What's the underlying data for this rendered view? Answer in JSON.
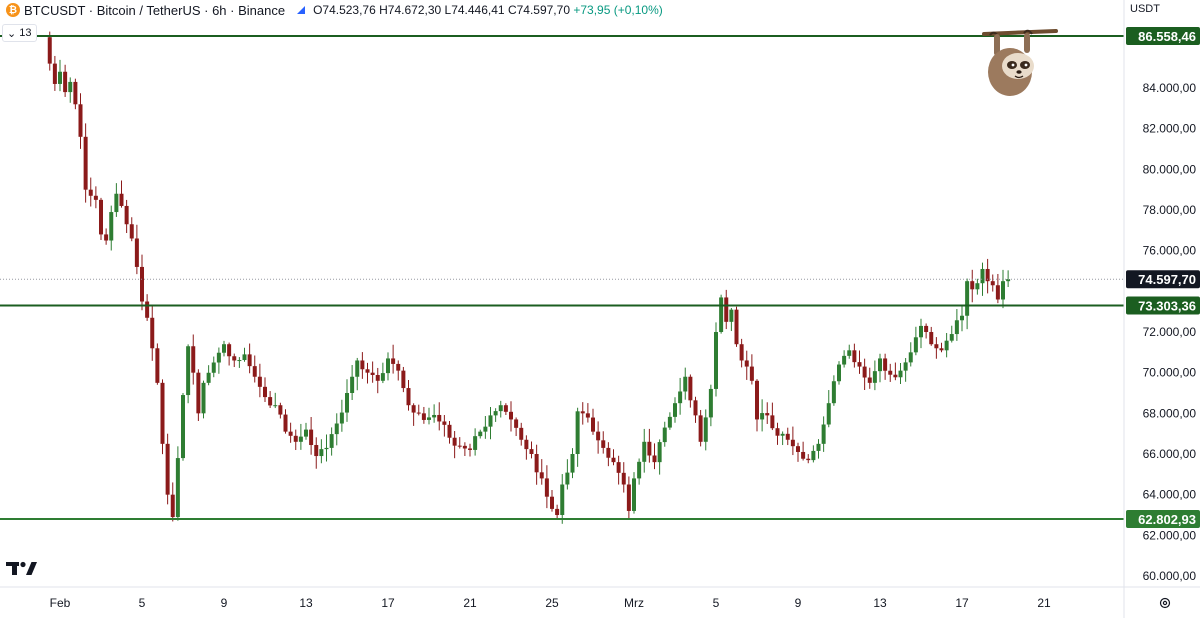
{
  "header": {
    "symbol_line": "BTCUSDT · Bitcoin / TetherUS · 6h · Binance",
    "coin_icon": "bitcoin-icon",
    "open": "O74.523,76",
    "high": "H74.672,30",
    "low": "L74.446,41",
    "close": "C74.597,70",
    "change": "+73,95 (+0,10%)",
    "indicator_count": "13"
  },
  "axis": {
    "unit": "USDT",
    "price_ticks": [
      "84.000,00",
      "82.000,00",
      "80.000,00",
      "78.000,00",
      "76.000,00",
      "72.000,00",
      "70.000,00",
      "68.000,00",
      "66.000,00",
      "64.000,00",
      "62.000,00",
      "60.000,00"
    ],
    "price_tick_values": [
      84000,
      82000,
      80000,
      78000,
      76000,
      72000,
      70000,
      68000,
      66000,
      64000,
      62000,
      60000
    ],
    "date_ticks": [
      "Feb",
      "5",
      "9",
      "13",
      "17",
      "21",
      "25",
      "Mrz",
      "5",
      "9",
      "13",
      "17",
      "21"
    ],
    "date_tick_days": [
      31,
      35,
      39,
      43,
      47,
      51,
      55,
      59,
      63,
      67,
      71,
      75,
      79
    ]
  },
  "levels": [
    {
      "label": "86.558,46",
      "value": 86558.46,
      "color": "#1b5e20"
    },
    {
      "label": "73.303,36",
      "value": 73303.36,
      "color": "#1b5e20"
    },
    {
      "label": "62.802,93",
      "value": 62802.93,
      "color": "#2e7d32"
    }
  ],
  "last_price": {
    "label": "74.597,70",
    "value": 74597.7,
    "color": "#131722"
  },
  "colors": {
    "up": "#2e7d32",
    "down": "#8b1a1a",
    "grid": "#f0f3fa"
  },
  "sloth_icon": "sloth-hanging-icon",
  "logo_icon": "tradingview-logo",
  "settings_icon": "gear-icon",
  "chart_data": {
    "type": "candlestick",
    "x_unit": "days since Jan 1 (6h bars)",
    "ylim": [
      60000,
      87000
    ],
    "series": [
      {
        "name": "BTCUSDT",
        "anchors": [
          [
            30.25,
            86500
          ],
          [
            30.5,
            85200
          ],
          [
            30.75,
            84200
          ],
          [
            31.0,
            84800
          ],
          [
            31.25,
            83800
          ],
          [
            31.5,
            84300
          ],
          [
            31.75,
            83200
          ],
          [
            32.0,
            81600
          ],
          [
            32.25,
            79000
          ],
          [
            32.5,
            78700
          ],
          [
            32.75,
            78500
          ],
          [
            33.0,
            76800
          ],
          [
            33.25,
            76500
          ],
          [
            33.5,
            77900
          ],
          [
            33.75,
            78800
          ],
          [
            34.0,
            78200
          ],
          [
            34.25,
            77300
          ],
          [
            34.5,
            76600
          ],
          [
            34.75,
            75200
          ],
          [
            35.0,
            73500
          ],
          [
            35.25,
            72700
          ],
          [
            35.5,
            71200
          ],
          [
            35.75,
            69500
          ],
          [
            36.0,
            66500
          ],
          [
            36.25,
            64000
          ],
          [
            36.5,
            62900
          ],
          [
            36.75,
            65800
          ],
          [
            37.0,
            68900
          ],
          [
            37.25,
            71300
          ],
          [
            37.5,
            70000
          ],
          [
            37.75,
            68000
          ],
          [
            38.0,
            69500
          ],
          [
            38.5,
            70500
          ],
          [
            39.0,
            71400
          ],
          [
            39.5,
            70600
          ],
          [
            40.0,
            70900
          ],
          [
            40.5,
            69800
          ],
          [
            41.0,
            68800
          ],
          [
            41.5,
            68400
          ],
          [
            42.0,
            67100
          ],
          [
            42.5,
            66600
          ],
          [
            43.0,
            67200
          ],
          [
            43.5,
            65900
          ],
          [
            44.0,
            66300
          ],
          [
            44.5,
            67500
          ],
          [
            45.0,
            69000
          ],
          [
            45.5,
            70600
          ],
          [
            46.0,
            70000
          ],
          [
            46.5,
            69600
          ],
          [
            47.0,
            70700
          ],
          [
            47.5,
            70100
          ],
          [
            48.0,
            68400
          ],
          [
            48.5,
            68000
          ],
          [
            49.0,
            67800
          ],
          [
            49.5,
            67600
          ],
          [
            50.0,
            66800
          ],
          [
            50.5,
            66400
          ],
          [
            51.0,
            66200
          ],
          [
            51.5,
            67100
          ],
          [
            52.0,
            67900
          ],
          [
            52.5,
            68400
          ],
          [
            53.0,
            67700
          ],
          [
            53.5,
            66700
          ],
          [
            54.0,
            66000
          ],
          [
            54.25,
            65100
          ],
          [
            54.5,
            64800
          ],
          [
            54.75,
            63900
          ],
          [
            55.0,
            63300
          ],
          [
            55.25,
            63000
          ],
          [
            55.5,
            64500
          ],
          [
            56.0,
            66000
          ],
          [
            56.25,
            68100
          ],
          [
            56.5,
            68000
          ],
          [
            57.0,
            67100
          ],
          [
            57.5,
            66300
          ],
          [
            58.0,
            65600
          ],
          [
            58.5,
            64500
          ],
          [
            58.75,
            63200
          ],
          [
            59.0,
            64800
          ],
          [
            59.5,
            66600
          ],
          [
            60.0,
            65600
          ],
          [
            60.5,
            67300
          ],
          [
            61.0,
            68500
          ],
          [
            61.5,
            69800
          ],
          [
            62.0,
            67900
          ],
          [
            62.25,
            66600
          ],
          [
            62.5,
            67800
          ],
          [
            62.75,
            69200
          ],
          [
            63.0,
            72000
          ],
          [
            63.25,
            73700
          ],
          [
            63.5,
            72500
          ],
          [
            63.75,
            73100
          ],
          [
            64.0,
            71400
          ],
          [
            64.25,
            70600
          ],
          [
            64.5,
            70300
          ],
          [
            64.75,
            69600
          ],
          [
            65.0,
            67700
          ],
          [
            65.5,
            67900
          ],
          [
            66.0,
            66900
          ],
          [
            66.5,
            66700
          ],
          [
            67.0,
            66100
          ],
          [
            67.5,
            65700
          ],
          [
            68.0,
            66500
          ],
          [
            68.5,
            68500
          ],
          [
            69.0,
            70400
          ],
          [
            69.5,
            71100
          ],
          [
            70.0,
            70300
          ],
          [
            70.5,
            69500
          ],
          [
            71.0,
            70700
          ],
          [
            71.5,
            69900
          ],
          [
            72.0,
            70100
          ],
          [
            72.5,
            71000
          ],
          [
            73.0,
            72300
          ],
          [
            73.25,
            72000
          ],
          [
            73.5,
            71400
          ],
          [
            73.75,
            71200
          ],
          [
            74.0,
            71100
          ],
          [
            74.5,
            71900
          ],
          [
            75.0,
            72800
          ],
          [
            75.25,
            74500
          ],
          [
            75.5,
            74100
          ],
          [
            75.75,
            74400
          ],
          [
            76.0,
            75100
          ],
          [
            76.25,
            74500
          ],
          [
            76.5,
            74300
          ],
          [
            76.75,
            73600
          ],
          [
            77.0,
            74500
          ],
          [
            77.25,
            74600
          ]
        ]
      }
    ]
  }
}
